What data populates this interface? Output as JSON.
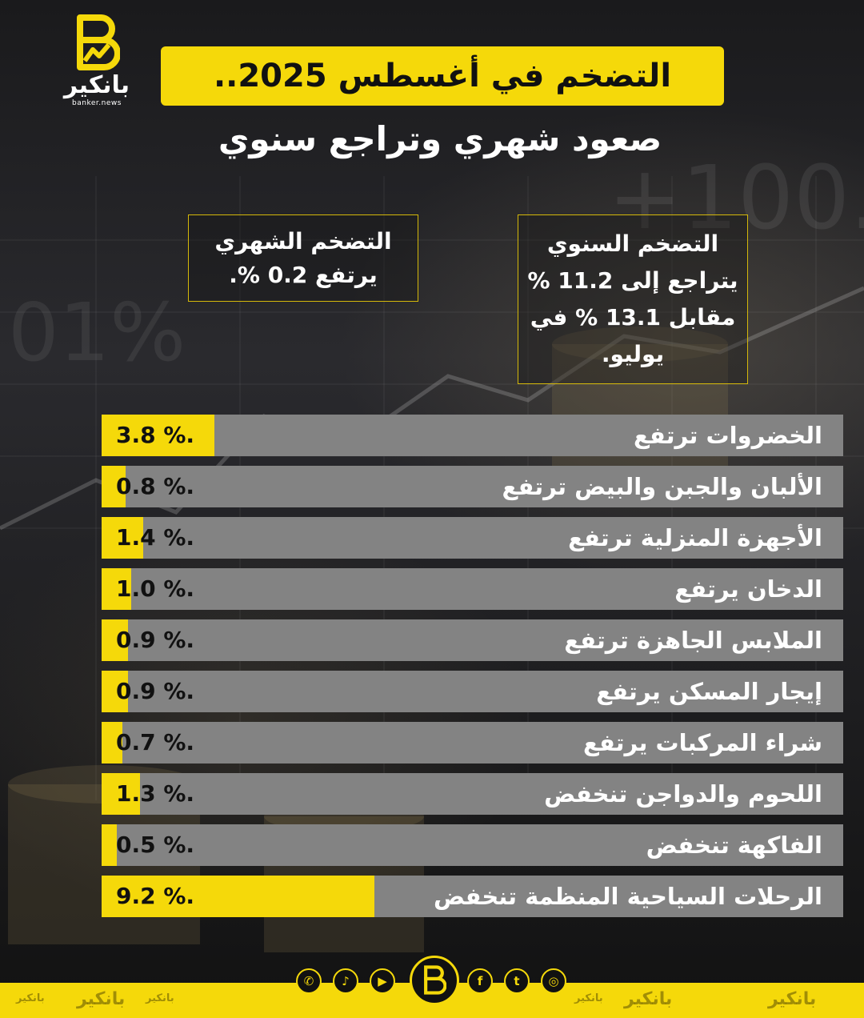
{
  "brand": {
    "name": "بانكير",
    "domain": "banker.news",
    "yellow": "#f5d90a",
    "gray": "#838383"
  },
  "title": "التضخم في أغسطس 2025..",
  "subtitle": "صعود شهري وتراجع سنوي",
  "annual_box": {
    "lines": [
      "التضخم السنوي",
      "يتراجع إلى 11.2 %",
      "مقابل 13.1 % في",
      "يوليو."
    ]
  },
  "monthly_box": {
    "lines": [
      "التضخم الشهري",
      "يرتفع 0.2 %."
    ]
  },
  "chart_data": {
    "type": "bar",
    "orientation": "horizontal",
    "xlim": [
      0,
      25
    ],
    "categories": [
      "الخضروات ترتفع",
      "الألبان والجبن والبيض ترتفع",
      "الأجهزة المنزلية ترتفع",
      "الدخان يرتفع",
      "الملابس الجاهزة ترتفع",
      "إيجار المسكن يرتفع",
      "شراء المركبات يرتفع",
      "اللحوم والدواجن تنخفض",
      "الفاكهة تنخفض",
      "الرحلات السياحية المنظمة تنخفض"
    ],
    "values": [
      3.8,
      0.8,
      1.4,
      1.0,
      0.9,
      0.9,
      0.7,
      1.3,
      0.5,
      9.2
    ],
    "value_labels": [
      "3.8 %.",
      "0.8 %.",
      "1.4 %.",
      "1.0 %.",
      "0.9 %.",
      "0.9 %.",
      "0.7 %.",
      "1.3 %.",
      "0.5 %.",
      "9.2 %."
    ]
  },
  "footer": {
    "watermarks": [
      "بانكير",
      "بانكير",
      "بانكير",
      "بانكير",
      "بانكير",
      "بانكير"
    ],
    "social_icons": [
      "whatsapp-icon",
      "tiktok-icon",
      "youtube-icon",
      "facebook-icon",
      "twitter-icon",
      "instagram-icon"
    ]
  }
}
